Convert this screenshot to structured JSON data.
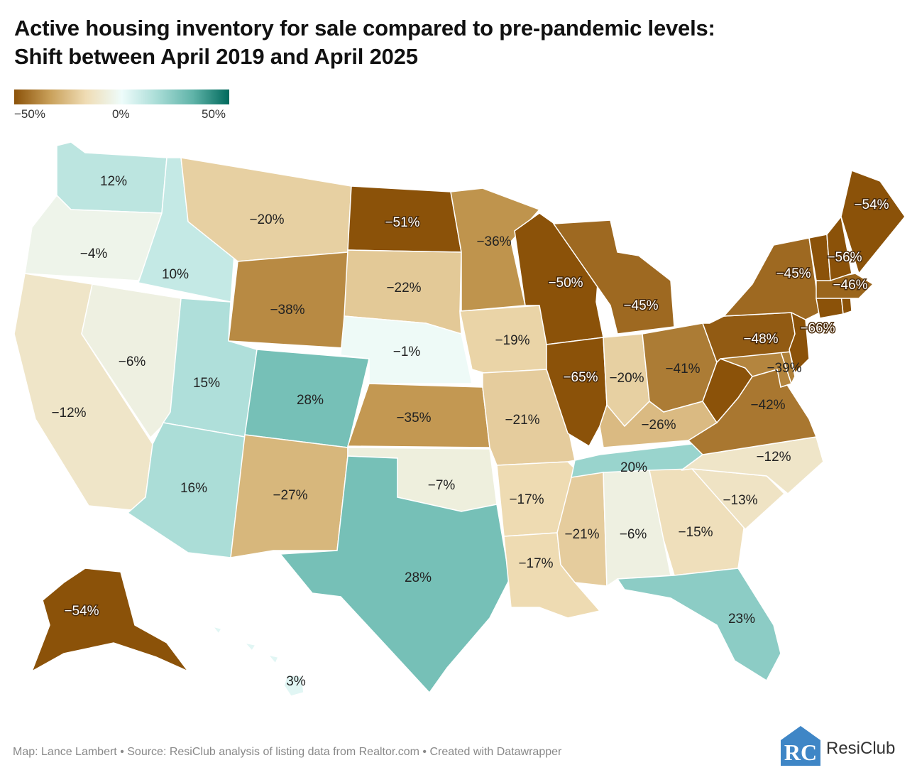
{
  "title": {
    "line1": "Active housing inventory for sale compared to pre-pandemic levels:",
    "line2": "Shift between April 2019 and April 2025"
  },
  "legend": {
    "min_label": "−50%",
    "mid_label": "0%",
    "max_label": "50%",
    "min_value": -50,
    "max_value": 50,
    "colors": [
      "#8b5209",
      "#c9a05a",
      "#efdcb4",
      "#eefcfb",
      "#a8dcd6",
      "#5fb3a8",
      "#00695c"
    ]
  },
  "states": [
    {
      "id": "WA",
      "name": "Washington",
      "value": 12,
      "label": "12%"
    },
    {
      "id": "OR",
      "name": "Oregon",
      "value": -4,
      "label": "−4%"
    },
    {
      "id": "CA",
      "name": "California",
      "value": -12,
      "label": "−12%"
    },
    {
      "id": "NV",
      "name": "Nevada",
      "value": -6,
      "label": "−6%"
    },
    {
      "id": "ID",
      "name": "Idaho",
      "value": 10,
      "label": "10%"
    },
    {
      "id": "MT",
      "name": "Montana",
      "value": -20,
      "label": "−20%"
    },
    {
      "id": "WY",
      "name": "Wyoming",
      "value": -38,
      "label": "−38%"
    },
    {
      "id": "UT",
      "name": "Utah",
      "value": 15,
      "label": "15%"
    },
    {
      "id": "AZ",
      "name": "Arizona",
      "value": 16,
      "label": "16%"
    },
    {
      "id": "CO",
      "name": "Colorado",
      "value": 28,
      "label": "28%"
    },
    {
      "id": "NM",
      "name": "New Mexico",
      "value": -27,
      "label": "−27%"
    },
    {
      "id": "ND",
      "name": "North Dakota",
      "value": -51,
      "label": "−51%"
    },
    {
      "id": "SD",
      "name": "South Dakota",
      "value": -22,
      "label": "−22%"
    },
    {
      "id": "NE",
      "name": "Nebraska",
      "value": -1,
      "label": "−1%"
    },
    {
      "id": "KS",
      "name": "Kansas",
      "value": -35,
      "label": "−35%"
    },
    {
      "id": "OK",
      "name": "Oklahoma",
      "value": -7,
      "label": "−7%"
    },
    {
      "id": "TX",
      "name": "Texas",
      "value": 28,
      "label": "28%"
    },
    {
      "id": "MN",
      "name": "Minnesota",
      "value": -36,
      "label": "−36%"
    },
    {
      "id": "IA",
      "name": "Iowa",
      "value": -19,
      "label": "−19%"
    },
    {
      "id": "MO",
      "name": "Missouri",
      "value": -21,
      "label": "−21%"
    },
    {
      "id": "AR",
      "name": "Arkansas",
      "value": -17,
      "label": "−17%"
    },
    {
      "id": "LA",
      "name": "Louisiana",
      "value": -17,
      "label": "−17%"
    },
    {
      "id": "WI",
      "name": "Wisconsin",
      "value": -50,
      "label": "−50%"
    },
    {
      "id": "IL",
      "name": "Illinois",
      "value": -65,
      "label": "−65%"
    },
    {
      "id": "MI",
      "name": "Michigan",
      "value": -45,
      "label": "−45%"
    },
    {
      "id": "IN",
      "name": "Indiana",
      "value": -20,
      "label": "−20%"
    },
    {
      "id": "OH",
      "name": "Ohio",
      "value": -41,
      "label": "−41%"
    },
    {
      "id": "KY",
      "name": "Kentucky",
      "value": -26,
      "label": "−26%"
    },
    {
      "id": "TN",
      "name": "Tennessee",
      "value": 20,
      "label": "20%"
    },
    {
      "id": "MS",
      "name": "Mississippi",
      "value": -21,
      "label": "−21%"
    },
    {
      "id": "AL",
      "name": "Alabama",
      "value": -6,
      "label": "−6%"
    },
    {
      "id": "GA",
      "name": "Georgia",
      "value": -15,
      "label": "−15%"
    },
    {
      "id": "FL",
      "name": "Florida",
      "value": 23,
      "label": "23%"
    },
    {
      "id": "SC",
      "name": "South Carolina",
      "value": -13,
      "label": "−13%"
    },
    {
      "id": "NC",
      "name": "North Carolina",
      "value": -12,
      "label": "−12%"
    },
    {
      "id": "VA",
      "name": "Virginia",
      "value": -42,
      "label": "−42%"
    },
    {
      "id": "WV",
      "name": "West Virginia",
      "value": -55,
      "label": ""
    },
    {
      "id": "MD",
      "name": "Maryland",
      "value": -39,
      "label": "−39%"
    },
    {
      "id": "DE",
      "name": "Delaware",
      "value": -40,
      "label": ""
    },
    {
      "id": "PA",
      "name": "Pennsylvania",
      "value": -48,
      "label": "−48%"
    },
    {
      "id": "NJ",
      "name": "New Jersey",
      "value": -60,
      "label": ""
    },
    {
      "id": "NY",
      "name": "New York",
      "value": -45,
      "label": "−45%"
    },
    {
      "id": "CT",
      "name": "Connecticut",
      "value": -66,
      "label": "−66%"
    },
    {
      "id": "RI",
      "name": "Rhode Island",
      "value": -55,
      "label": ""
    },
    {
      "id": "MA",
      "name": "Massachusetts",
      "value": -46,
      "label": "−46%"
    },
    {
      "id": "VT",
      "name": "Vermont",
      "value": -55,
      "label": ""
    },
    {
      "id": "NH",
      "name": "New Hampshire",
      "value": -56,
      "label": "−56%"
    },
    {
      "id": "ME",
      "name": "Maine",
      "value": -54,
      "label": "−54%"
    },
    {
      "id": "AK",
      "name": "Alaska",
      "value": -54,
      "label": "−54%"
    },
    {
      "id": "HI",
      "name": "Hawaii",
      "value": 3,
      "label": "3%"
    }
  ],
  "footer": {
    "text": "Map: Lance Lambert • Source: ResiClub analysis of listing data from Realtor.com • Created with Datawrapper"
  },
  "brand": {
    "logo_icon": "resiclub-house-logo-icon",
    "logo_letters": "RC",
    "name": "ResiClub"
  }
}
